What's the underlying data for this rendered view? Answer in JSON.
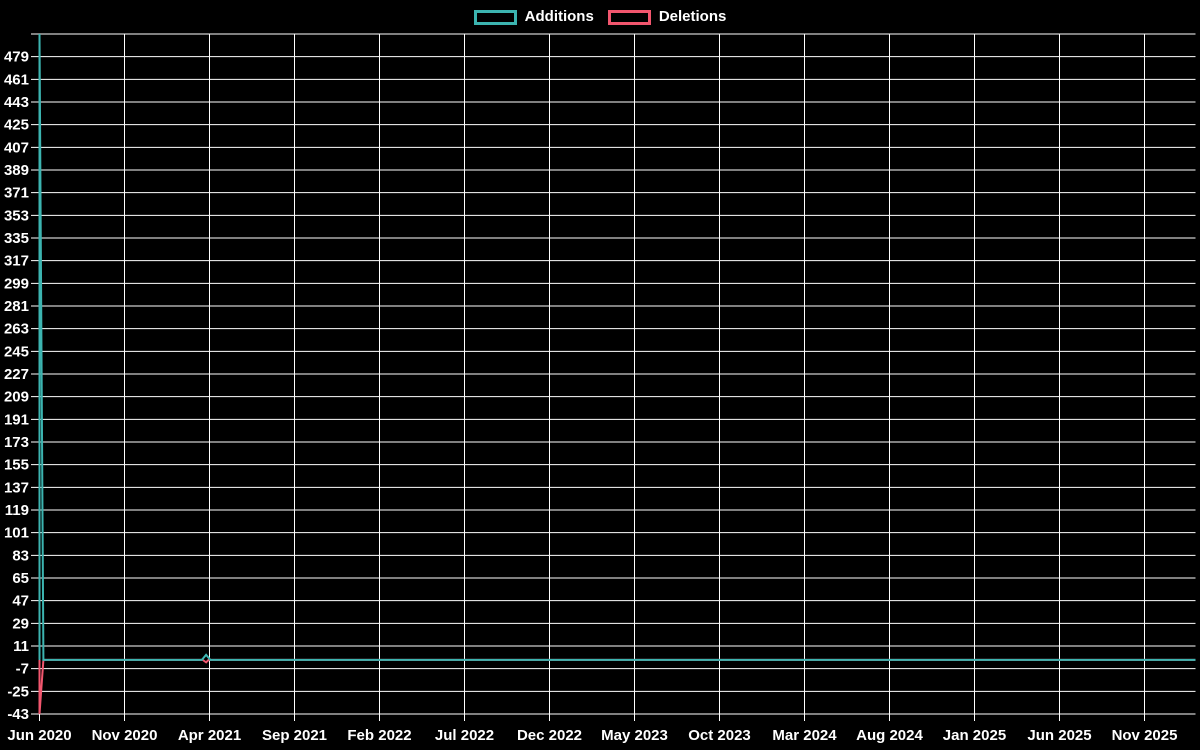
{
  "chart_data": {
    "type": "line",
    "title": "",
    "legend_position": "top-center",
    "grid": true,
    "colors": {
      "background": "#000000",
      "grid": "#ffffff",
      "text": "#ffffff",
      "additions": "#3cb4b0",
      "deletions": "#f2566e"
    },
    "legend": [
      {
        "label": "Additions",
        "color": "#3cb4b0"
      },
      {
        "label": "Deletions",
        "color": "#f2566e"
      }
    ],
    "x_axis": {
      "tick_labels": [
        "Jun 2020",
        "Nov 2020",
        "Apr 2021",
        "Sep 2021",
        "Feb 2022",
        "Jul 2022",
        "Dec 2022",
        "May 2023",
        "Oct 2023",
        "Mar 2024",
        "Aug 2024",
        "Jan 2025",
        "Jun 2025",
        "Nov 2025"
      ],
      "tick_interval_months": 5,
      "range_months": [
        0,
        68
      ]
    },
    "y_axis": {
      "tick_labels": [
        "479",
        "461",
        "443",
        "425",
        "407",
        "389",
        "371",
        "353",
        "335",
        "317",
        "299",
        "281",
        "263",
        "245",
        "227",
        "209",
        "191",
        "173",
        "155",
        "137",
        "119",
        "101",
        "83",
        "65",
        "47",
        "29",
        "11",
        "-7",
        "-25",
        "-43"
      ],
      "tick_step": 18,
      "grid_min": -43,
      "grid_max": 497,
      "range": [
        -43,
        497
      ]
    },
    "series": [
      {
        "name": "Additions",
        "color": "#3cb4b0",
        "points_month_value": [
          [
            0,
            0
          ],
          [
            0,
            497
          ],
          [
            0.23,
            0
          ],
          [
            9.55,
            0
          ],
          [
            9.8,
            4
          ],
          [
            10.05,
            0
          ],
          [
            68,
            0
          ]
        ]
      },
      {
        "name": "Deletions",
        "color": "#f2566e",
        "points_month_value": [
          [
            0,
            0
          ],
          [
            0,
            -43
          ],
          [
            0.23,
            0
          ],
          [
            9.6,
            0
          ],
          [
            9.8,
            -2
          ],
          [
            9.95,
            0
          ],
          [
            68,
            0
          ]
        ]
      }
    ],
    "notable_points": [
      {
        "x_label": "Jun 2020",
        "additions": 497,
        "deletions": -43
      },
      {
        "x_label": "Apr 2021",
        "additions": 4,
        "deletions": -2
      }
    ],
    "baseline_value_other_weeks": 0
  }
}
